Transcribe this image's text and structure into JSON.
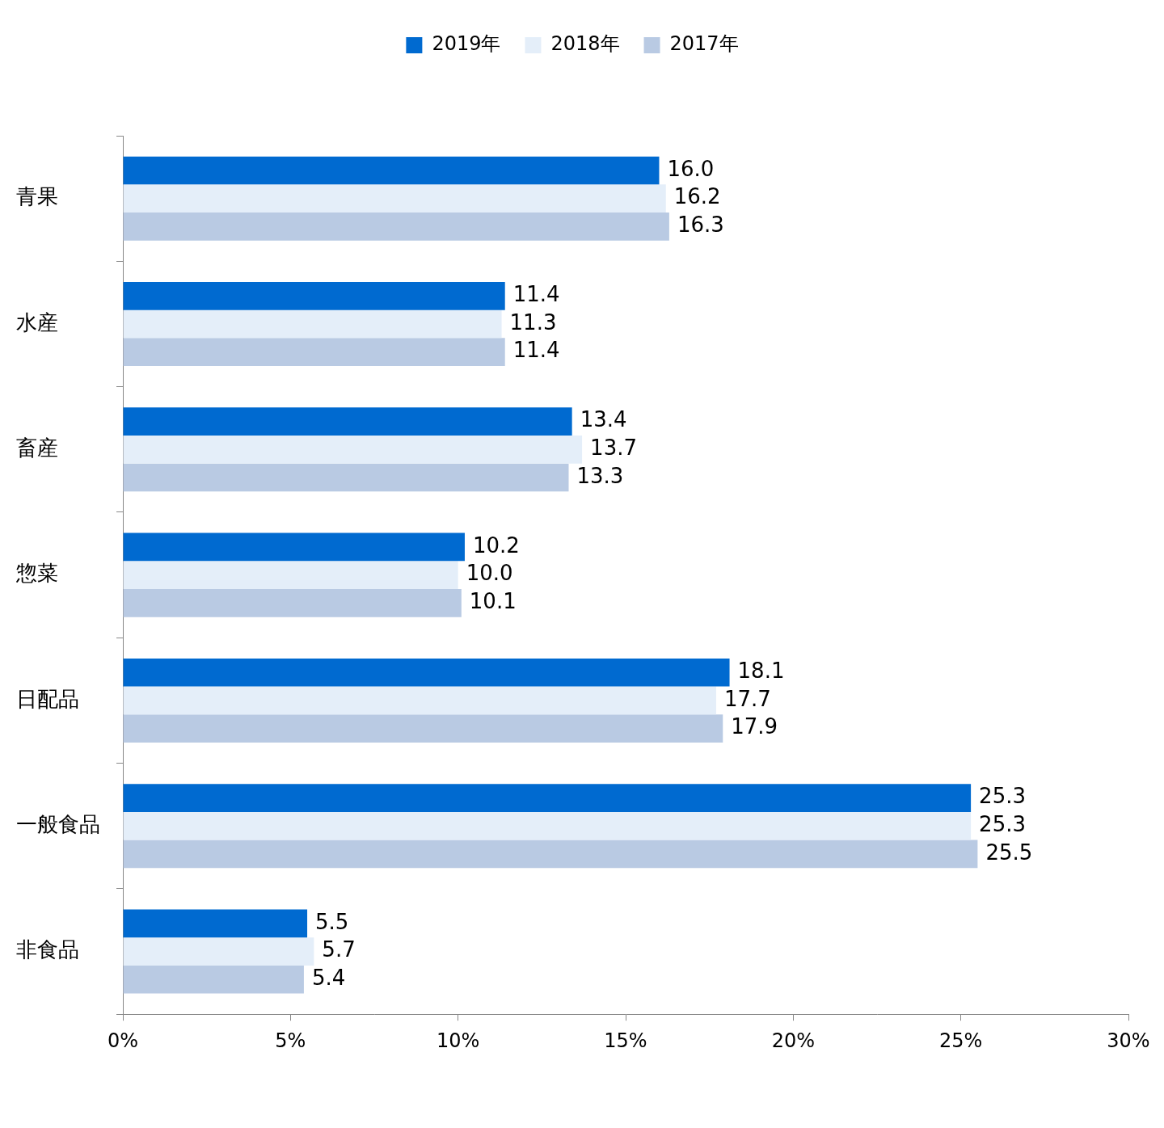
{
  "chart_data": {
    "type": "bar",
    "orientation": "horizontal",
    "categories": [
      "青果",
      "水産",
      "畜産",
      "惣菜",
      "日配品",
      "一般食品",
      "非食品"
    ],
    "series": [
      {
        "name": "2019年",
        "color": "#006ad0",
        "values": [
          16.0,
          11.4,
          13.4,
          10.2,
          18.1,
          25.3,
          5.5
        ],
        "value_labels": [
          "16.0",
          "11.4",
          "13.4",
          "10.2",
          "18.1",
          "25.3",
          "5.5"
        ]
      },
      {
        "name": "2018年",
        "color": "#e4eef9",
        "values": [
          16.2,
          11.3,
          13.7,
          10.0,
          17.7,
          25.3,
          5.7
        ],
        "value_labels": [
          "16.2",
          "11.3",
          "13.7",
          "10.0",
          "17.7",
          "25.3",
          "5.7"
        ]
      },
      {
        "name": "2017年",
        "color": "#b9cae3",
        "values": [
          16.3,
          11.4,
          13.3,
          10.1,
          17.9,
          25.5,
          5.4
        ],
        "value_labels": [
          "16.3",
          "11.4",
          "13.3",
          "10.1",
          "17.9",
          "25.5",
          "5.4"
        ]
      }
    ],
    "xlim": [
      0,
      30
    ],
    "xticks": [
      {
        "value": 0,
        "label": "0%"
      },
      {
        "value": 5,
        "label": "5%"
      },
      {
        "value": 10,
        "label": "10%"
      },
      {
        "value": 15,
        "label": "15%"
      },
      {
        "value": 20,
        "label": "20%"
      },
      {
        "value": 25,
        "label": "25%"
      },
      {
        "value": 30,
        "label": "30%"
      }
    ],
    "grid": false,
    "legend": "top",
    "data_labels": true
  }
}
